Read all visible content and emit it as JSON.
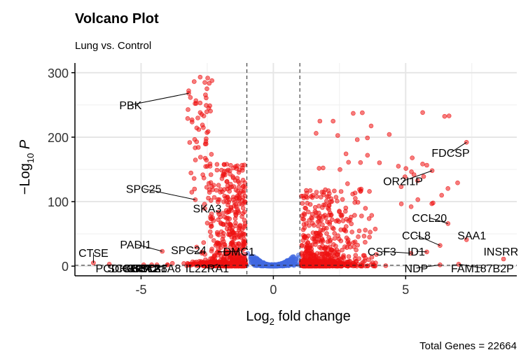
{
  "chart_data": {
    "type": "scatter",
    "title": "Volcano Plot",
    "subtitle": "Lung vs. Control",
    "xlabel": {
      "pre": "Log",
      "sub": "2",
      "post": " fold change"
    },
    "ylabel": {
      "pre": "−Log",
      "sub": "10",
      "post": " P"
    },
    "caption": "Total Genes = 22664",
    "xlim": [
      -7.5,
      9.2
    ],
    "ylim": [
      -15,
      315
    ],
    "x_ticks": [
      {
        "value": -5,
        "label": "-5"
      },
      {
        "value": 0,
        "label": "0"
      },
      {
        "value": 5,
        "label": "5"
      }
    ],
    "y_ticks": [
      {
        "value": 0,
        "label": "0"
      },
      {
        "value": 100,
        "label": "100"
      },
      {
        "value": 200,
        "label": "200"
      },
      {
        "value": 300,
        "label": "300"
      }
    ],
    "fc_cutoff": [
      -1,
      1
    ],
    "p_cutoff": 1.3,
    "grid": true,
    "legend": "none",
    "colors": {
      "significant": "#ee1111",
      "not_significant": "#4169e1"
    },
    "labeled_genes": [
      {
        "label": "PBK",
        "x": -3.2,
        "y": 268,
        "lx": -5.4,
        "ly": 250
      },
      {
        "label": "SPC25",
        "x": -2.95,
        "y": 103,
        "lx": -4.9,
        "ly": 120
      },
      {
        "label": "SKA3",
        "x": -2.6,
        "y": 96,
        "lx": -2.5,
        "ly": 90
      },
      {
        "label": "PADI1",
        "x": -4.2,
        "y": 23,
        "lx": -5.2,
        "ly": 34
      },
      {
        "label": "SPC24",
        "x": -2.7,
        "y": 20,
        "lx": -3.2,
        "ly": 25
      },
      {
        "label": "DMC1",
        "x": -2.1,
        "y": 22,
        "lx": -1.3,
        "ly": 23
      },
      {
        "label": "CTSE",
        "x": -6.8,
        "y": 5,
        "lx": -6.8,
        "ly": 21
      },
      {
        "label": "PCDH8",
        "x": -6.2,
        "y": 3,
        "lx": -6.0,
        "ly": -3
      },
      {
        "label": "SCGB3A2",
        "x": -4.9,
        "y": 2,
        "lx": -5.3,
        "ly": -3
      },
      {
        "label": "GRP",
        "x": -4.6,
        "y": 2,
        "lx": -5.1,
        "ly": -3
      },
      {
        "label": "CHI3L2",
        "x": -4.4,
        "y": 2,
        "lx": -5.0,
        "ly": -3
      },
      {
        "label": "GSTA1",
        "x": -4.0,
        "y": 2,
        "lx": -4.7,
        "ly": -3
      },
      {
        "label": "SLC38A8",
        "x": -4.0,
        "y": 2,
        "lx": -4.4,
        "ly": -3
      },
      {
        "label": "IL22RA1",
        "x": -2.1,
        "y": 3,
        "lx": -2.5,
        "ly": -3
      },
      {
        "label": "FDCSP",
        "x": 7.3,
        "y": 192,
        "lx": 6.7,
        "ly": 176
      },
      {
        "label": "OR2I1P",
        "x": 6.0,
        "y": 148,
        "lx": 4.9,
        "ly": 132
      },
      {
        "label": "CCL20",
        "x": 6.6,
        "y": 66,
        "lx": 5.9,
        "ly": 75
      },
      {
        "label": "CCL8",
        "x": 6.3,
        "y": 32,
        "lx": 5.4,
        "ly": 48
      },
      {
        "label": "SAA1",
        "x": 7.3,
        "y": 41,
        "lx": 7.5,
        "ly": 48
      },
      {
        "label": "CSF3",
        "x": 5.2,
        "y": 20,
        "lx": 4.1,
        "ly": 23
      },
      {
        "label": "ID1",
        "x": 5.8,
        "y": 22,
        "lx": 5.4,
        "ly": 23
      },
      {
        "label": "INSRR",
        "x": 8.7,
        "y": 11,
        "lx": 8.6,
        "ly": 23
      },
      {
        "label": "NDP",
        "x": 6.3,
        "y": 2,
        "lx": 5.4,
        "ly": -3
      },
      {
        "label": "FAM187B2P",
        "x": 7.0,
        "y": 3,
        "lx": 7.9,
        "ly": -3
      }
    ]
  }
}
